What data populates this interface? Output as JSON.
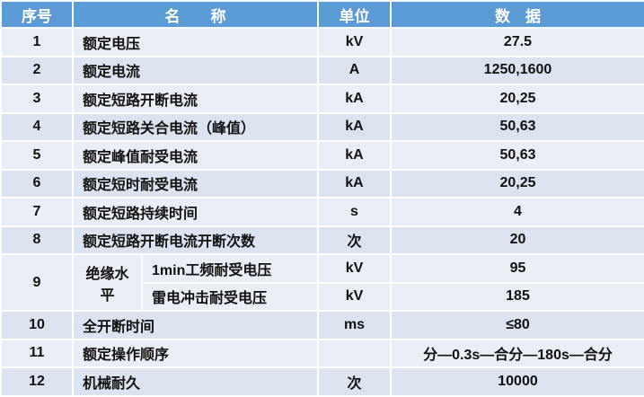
{
  "header": {
    "no": "序号",
    "name": "名　　称",
    "unit": "单位",
    "data": "数　据"
  },
  "rows": [
    {
      "no": "1",
      "name": "额定电压",
      "unit": "kV",
      "value": "27.5"
    },
    {
      "no": "2",
      "name": "额定电流",
      "unit": "A",
      "value": "1250,1600"
    },
    {
      "no": "3",
      "name": "额定短路开断电流",
      "unit": "kA",
      "value": "20,25"
    },
    {
      "no": "4",
      "name": "额定短路关合电流（峰值）",
      "unit": "kA",
      "value": "50,63"
    },
    {
      "no": "5",
      "name": "额定峰值耐受电流",
      "unit": "kA",
      "value": "50,63"
    },
    {
      "no": "6",
      "name": "额定短时耐受电流",
      "unit": "kA",
      "value": "20,25"
    },
    {
      "no": "7",
      "name": "额定短路持续时间",
      "unit": "s",
      "value": "4"
    },
    {
      "no": "8",
      "name": "额定短路开断电流开断次数",
      "unit": "次",
      "value": "20"
    }
  ],
  "row9": {
    "no": "9",
    "group": "绝缘水平",
    "sub": [
      {
        "name": "1min工频耐受电压",
        "unit": "kV",
        "value": "95"
      },
      {
        "name": "雷电冲击耐受电压",
        "unit": "kV",
        "value": "185"
      }
    ]
  },
  "rows_tail": [
    {
      "no": "10",
      "name": "全开断时间",
      "unit": "ms",
      "value": "≤80"
    },
    {
      "no": "11",
      "name": "额定操作顺序",
      "unit": "",
      "value": "分—0.3s—合分—180s—合分"
    },
    {
      "no": "12",
      "name": "机械耐久",
      "unit": "次",
      "value": "10000"
    }
  ],
  "colors": {
    "header": "#5b9bd5",
    "row_light": "#e9edf5",
    "row_dark": "#dbe3f0"
  }
}
